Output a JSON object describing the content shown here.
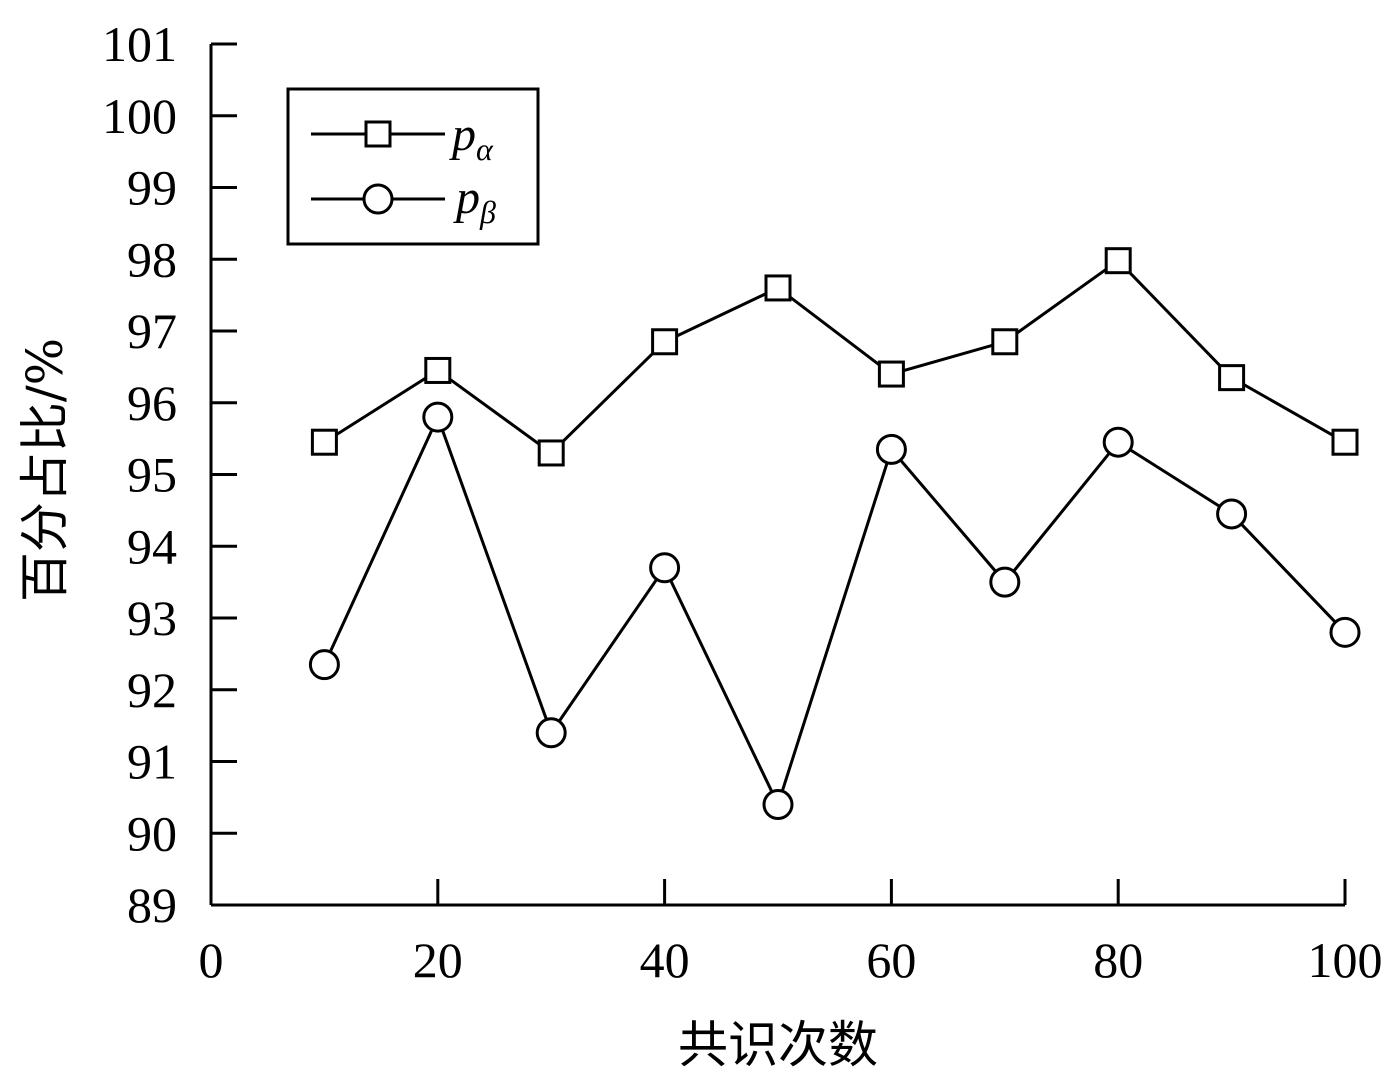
{
  "chart_data": {
    "type": "line",
    "xlabel": "共识次数",
    "ylabel": "百分占比/%",
    "xlim": [
      0,
      100
    ],
    "ylim": [
      89,
      101
    ],
    "xticks": [
      "0",
      "20",
      "40",
      "60",
      "80",
      "100"
    ],
    "yticks": [
      "89",
      "90",
      "91",
      "92",
      "93",
      "94",
      "95",
      "96",
      "97",
      "98",
      "99",
      "100",
      "101"
    ],
    "grid": false,
    "legend_position": "top-left",
    "x": [
      10,
      20,
      30,
      40,
      50,
      60,
      70,
      80,
      90,
      100
    ],
    "series": [
      {
        "name_base": "p",
        "name_sub": "α",
        "marker": "square",
        "values": [
          95.45,
          96.45,
          95.3,
          96.85,
          97.6,
          96.4,
          96.85,
          97.98,
          96.35,
          95.45
        ]
      },
      {
        "name_base": "p",
        "name_sub": "β",
        "marker": "circle",
        "values": [
          92.35,
          95.8,
          91.4,
          93.7,
          90.4,
          95.35,
          93.5,
          95.45,
          94.45,
          92.8
        ]
      }
    ],
    "line_color": "#000000"
  }
}
